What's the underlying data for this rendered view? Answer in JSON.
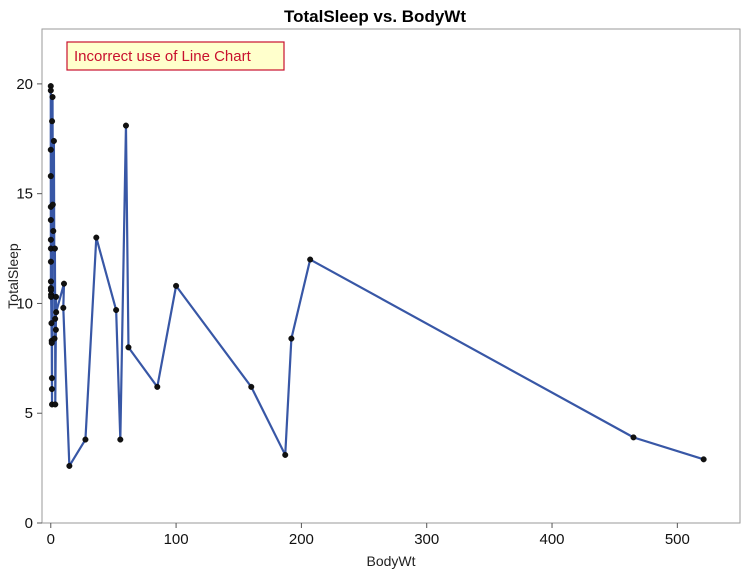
{
  "chart_data": {
    "type": "line",
    "title": "TotalSleep vs. BodyWt",
    "xlabel": "BodyWt",
    "ylabel": "TotalSleep",
    "xlim": [
      -7,
      550
    ],
    "ylim": [
      0,
      22.5
    ],
    "xticks": [
      0,
      100,
      200,
      300,
      400,
      500
    ],
    "yticks": [
      0,
      5,
      10,
      15,
      20
    ],
    "grid": false,
    "line_color": "#3857a6",
    "marker_color": "#111111",
    "annotation": {
      "text": "Incorrect use of Line Chart",
      "text_color": "#c8102e",
      "fill": "#ffffcc",
      "border_color": "#c8102e",
      "placement": "top-left"
    },
    "series": [
      {
        "x": [
          0.005,
          0.01,
          0.02,
          0.023,
          0.048,
          0.06,
          0.075,
          0.101,
          0.104,
          0.12,
          0.12,
          0.14,
          0.25,
          0.28,
          0.55,
          0.75,
          0.785,
          0.9,
          0.92,
          1.0,
          1.04,
          1.41,
          1.62,
          2.0,
          2.5,
          3.0,
          3.3,
          3.5,
          3.6,
          4.05,
          4.19,
          4.29,
          10.55,
          10.0,
          14.83,
          27.66,
          36.33,
          52.16,
          55.5,
          60.0,
          62.0,
          85.0,
          100.0,
          160.0,
          187.1,
          192.0,
          207.0,
          465.0,
          521.0
        ],
        "y": [
          19.9,
          17.0,
          19.7,
          15.8,
          14.4,
          13.8,
          12.9,
          12.5,
          11.9,
          11.0,
          10.7,
          10.6,
          10.4,
          10.3,
          9.1,
          8.3,
          8.2,
          6.6,
          6.1,
          5.4,
          18.3,
          19.4,
          14.5,
          13.3,
          17.4,
          8.4,
          12.5,
          9.3,
          5.4,
          8.8,
          10.3,
          9.6,
          10.9,
          9.8,
          2.6,
          3.8,
          13.0,
          9.7,
          3.8,
          18.1,
          8.0,
          6.2,
          10.8,
          6.2,
          3.1,
          8.4,
          12.0,
          3.9,
          2.9
        ]
      }
    ]
  }
}
